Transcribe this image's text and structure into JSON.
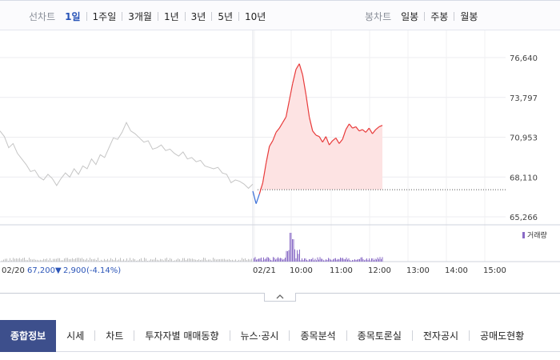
{
  "toolbar": {
    "line_chart_label": "선차트",
    "periods": [
      "1일",
      "1주일",
      "3개월",
      "1년",
      "3년",
      "5년",
      "10년"
    ],
    "active_period": "1일",
    "candle_chart_label": "봉차트",
    "candle_periods": [
      "일봉",
      "주봉",
      "월봉"
    ]
  },
  "info": {
    "prev_date": "02/20",
    "price": "67,200",
    "change_arrow": "▼",
    "change": "2,900",
    "change_pct": "(-4.14%)",
    "volume_legend": "거래량"
  },
  "colors": {
    "up": "#e83a3a",
    "down": "#3a6fd8",
    "prev": "#c5c5c5",
    "fill": "#fde3e3",
    "volume_today": "#8a6bc6",
    "volume_prev": "#bdbdbd",
    "tab_active_bg": "#3d4f8c"
  },
  "chart_data": {
    "type": "line",
    "title": "",
    "y_ticks": [
      "76,640",
      "73,797",
      "70,953",
      "68,110",
      "65,266"
    ],
    "ylim": [
      65266,
      76640
    ],
    "x_ticks": [
      "02/21",
      "10:00",
      "11:00",
      "12:00",
      "13:00",
      "14:00",
      "15:00"
    ],
    "reference_price": 67200,
    "series": [
      {
        "name": "",
        "values": [
          71400,
          71000,
          70200,
          70500,
          69800,
          69400,
          69000,
          68500,
          68600,
          68100,
          67900,
          68300,
          68000,
          67500,
          68000,
          68400,
          68100,
          68700,
          68300,
          68900,
          68700,
          69400,
          69000,
          69700,
          69500,
          70200,
          70900,
          70800,
          71300,
          72000,
          71400,
          71200,
          70900,
          70600,
          70700,
          70100,
          70200,
          70400,
          70000,
          70100,
          69800,
          69600,
          69900,
          69400,
          69500,
          69200,
          69300,
          68900,
          68800,
          68700,
          68800,
          68400,
          68300,
          67700,
          67900,
          67800,
          67600,
          67300,
          67600
        ]
      },
      {
        "name": "",
        "values": [
          67100,
          66200,
          66900,
          67700,
          69100,
          70300,
          70700,
          71300,
          71600,
          72000,
          72400,
          73600,
          74800,
          75800,
          76200,
          75400,
          74000,
          72400,
          71400,
          71100,
          71000,
          70600,
          71000,
          70400,
          70700,
          70900,
          70500,
          70800,
          71500,
          71900,
          71600,
          71700,
          71400,
          71500,
          71300,
          71600,
          71200,
          71500,
          71700,
          71800
        ]
      }
    ],
    "volume_legend": "거래량"
  },
  "tabs": [
    "종합정보",
    "시세",
    "차트",
    "투자자별 매매동향",
    "뉴스·공시",
    "종목분석",
    "종목토론실",
    "전자공시",
    "공매도현황"
  ],
  "active_tab": "종합정보"
}
